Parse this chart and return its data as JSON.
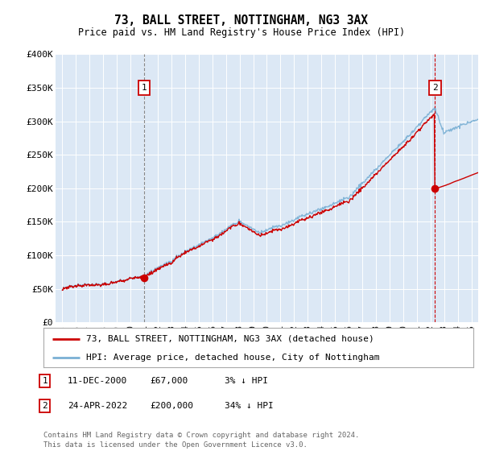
{
  "title": "73, BALL STREET, NOTTINGHAM, NG3 3AX",
  "subtitle": "Price paid vs. HM Land Registry's House Price Index (HPI)",
  "ylabel_ticks": [
    "£0",
    "£50K",
    "£100K",
    "£150K",
    "£200K",
    "£250K",
    "£300K",
    "£350K",
    "£400K"
  ],
  "ytick_values": [
    0,
    50000,
    100000,
    150000,
    200000,
    250000,
    300000,
    350000,
    400000
  ],
  "ylim": [
    0,
    400000
  ],
  "xlim_start": 1994.5,
  "xlim_end": 2025.5,
  "plot_bg": "#dce8f5",
  "line1_color": "#cc0000",
  "line2_color": "#7ab0d4",
  "sale1_x": 2001.0,
  "sale1_y": 67000,
  "sale2_x": 2022.33,
  "sale2_y": 200000,
  "annotation1_label": "1",
  "annotation2_label": "2",
  "legend_line1": "73, BALL STREET, NOTTINGHAM, NG3 3AX (detached house)",
  "legend_line2": "HPI: Average price, detached house, City of Nottingham",
  "footer": "Contains HM Land Registry data © Crown copyright and database right 2024.\nThis data is licensed under the Open Government Licence v3.0.",
  "table_rows": [
    {
      "num": "1",
      "date": "11-DEC-2000",
      "price": "£67,000",
      "pct": "3% ↓ HPI"
    },
    {
      "num": "2",
      "date": "24-APR-2022",
      "price": "£200,000",
      "pct": "34% ↓ HPI"
    }
  ]
}
